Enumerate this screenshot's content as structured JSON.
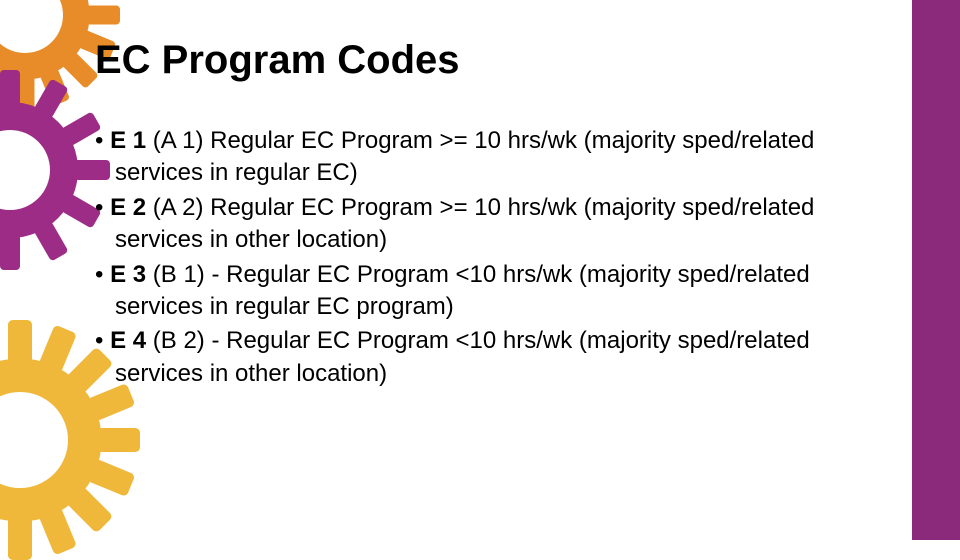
{
  "title": "EC Program Codes",
  "bullets": [
    {
      "code": "E 1",
      "rest": " (A 1) Regular EC Program >= 10 hrs/wk (majority sped/related services in regular EC)"
    },
    {
      "code": "E 2",
      "rest": " (A 2) Regular EC Program >= 10 hrs/wk (majority sped/related services in other location)"
    },
    {
      "code": "E 3",
      "rest": " (B 1) - Regular EC Program <10 hrs/wk (majority sped/related services in regular EC program)"
    },
    {
      "code": "E 4",
      "rest": " (B 2) - Regular EC Program <10 hrs/wk (majority sped/related services in other location)"
    }
  ],
  "colors": {
    "sidebar": "#8b2a7a",
    "gear_orange": "#e88c2a",
    "gear_purple": "#9c2c86",
    "gear_yellow": "#f0b83a",
    "text": "#000000",
    "background": "#ffffff"
  },
  "title_fontsize": 40,
  "body_fontsize": 24
}
